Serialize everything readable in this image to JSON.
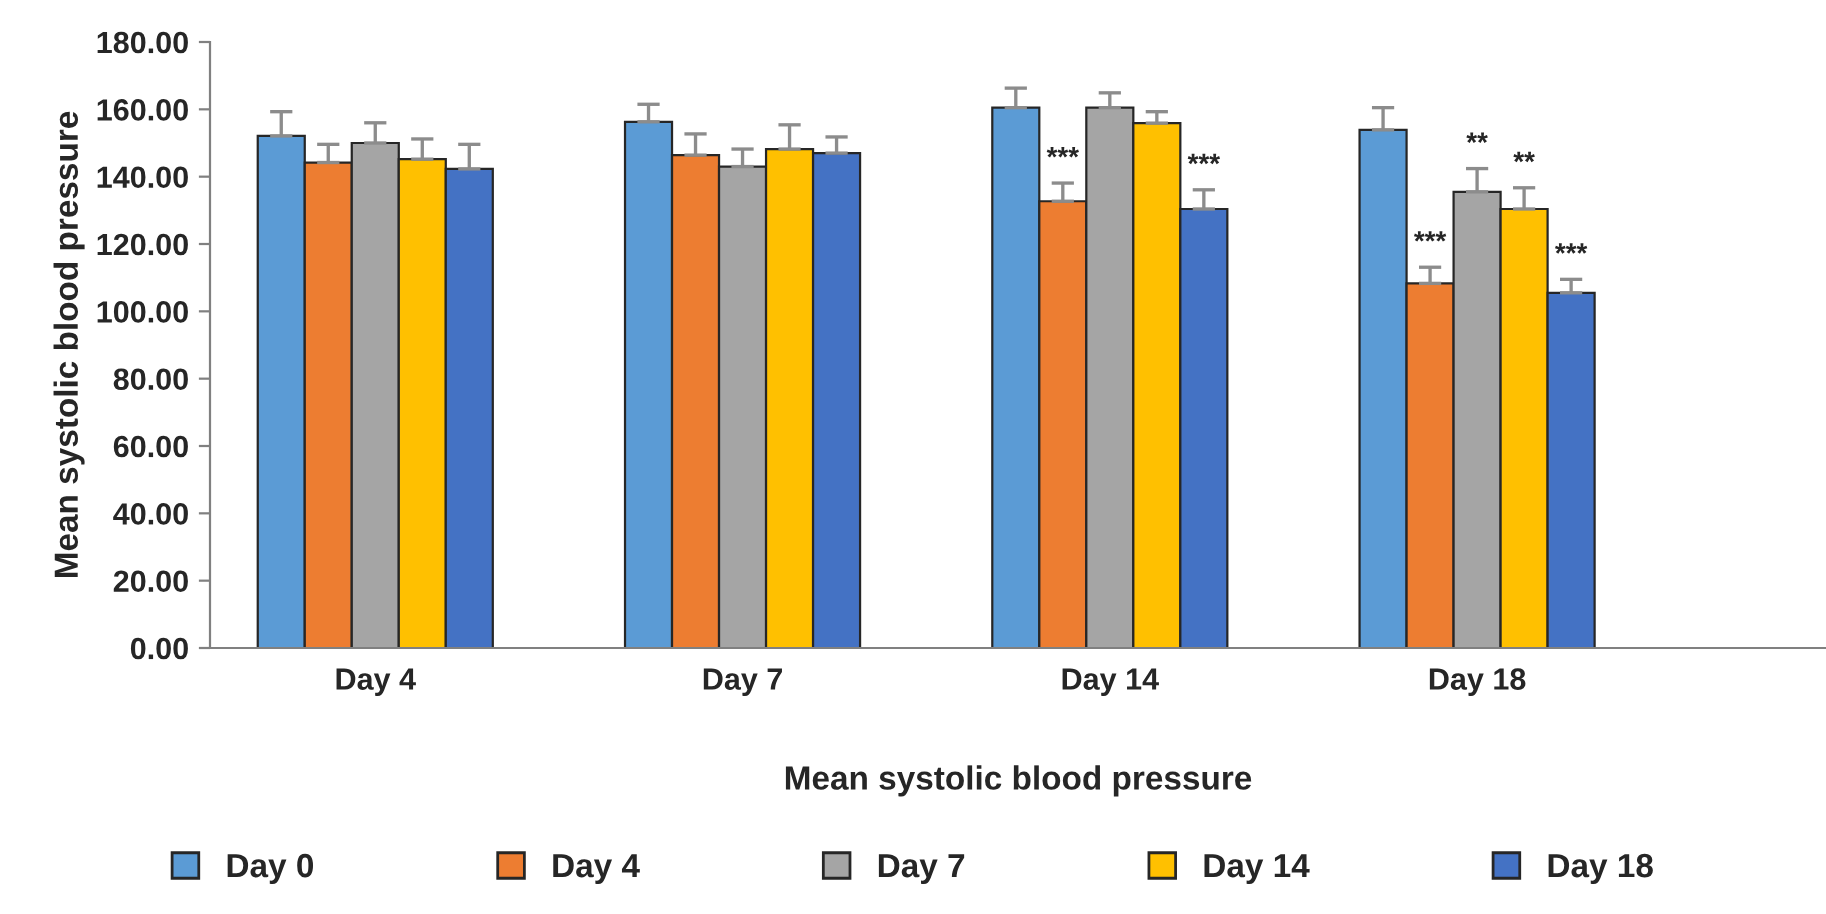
{
  "chart_data": {
    "type": "bar",
    "xlabel": "Mean systolic blood pressure",
    "ylabel": "Mean systolic blood pressure",
    "categories": [
      "Day 4",
      "Day 7",
      "Day 14",
      "Day 18"
    ],
    "series": [
      {
        "name": "Day 0",
        "color": "#5b9bd5",
        "values": [
          152.1,
          156.3,
          160.5,
          153.9
        ],
        "errors": [
          [
            152.1,
            159.3
          ],
          [
            156.3,
            161.5
          ],
          [
            160.5,
            166.3
          ],
          [
            153.9,
            160.5
          ]
        ]
      },
      {
        "name": "Day 4",
        "color": "#ed7d31",
        "values": [
          144.2,
          146.4,
          132.7,
          108.3
        ],
        "errors": [
          [
            144.2,
            149.6
          ],
          [
            146.4,
            152.7
          ],
          [
            132.7,
            138.1
          ],
          [
            108.3,
            113.1
          ]
        ],
        "value_labels": [
          null,
          null,
          "***",
          "***"
        ]
      },
      {
        "name": "Day 7",
        "color": "#a5a5a5",
        "values": [
          150.0,
          143.0,
          160.5,
          135.5
        ],
        "errors": [
          [
            150.0,
            156.0
          ],
          [
            143.0,
            148.2
          ],
          [
            160.5,
            164.9
          ],
          [
            135.5,
            142.4
          ]
        ],
        "value_labels": [
          null,
          null,
          null,
          "**"
        ]
      },
      {
        "name": "Day 14",
        "color": "#ffc000",
        "values": [
          145.2,
          148.2,
          155.9,
          130.4
        ],
        "errors": [
          [
            145.2,
            151.2
          ],
          [
            148.2,
            155.4
          ],
          [
            155.9,
            159.3
          ],
          [
            130.4,
            136.7
          ]
        ],
        "value_labels": [
          null,
          null,
          null,
          "**"
        ]
      },
      {
        "name": "Day 18",
        "color": "#4472c4",
        "values": [
          142.3,
          147.0,
          130.4,
          105.5
        ],
        "errors": [
          [
            142.3,
            149.6
          ],
          [
            147.0,
            151.8
          ],
          [
            130.4,
            136.1
          ],
          [
            105.5,
            109.5
          ]
        ],
        "value_labels": [
          null,
          null,
          "***",
          "***"
        ]
      }
    ],
    "ylim": [
      0,
      180
    ],
    "yticks": [
      {
        "value": 0,
        "label": "0.00"
      },
      {
        "value": 20,
        "label": "20.00"
      },
      {
        "value": 40,
        "label": "40.00"
      },
      {
        "value": 60,
        "label": "60.00"
      },
      {
        "value": 80,
        "label": "80.00"
      },
      {
        "value": 100,
        "label": "100.00"
      },
      {
        "value": 120,
        "label": "120.00"
      },
      {
        "value": 140,
        "label": "140.00"
      },
      {
        "value": 160,
        "label": "160.00"
      },
      {
        "value": 180,
        "label": "180.00"
      }
    ],
    "grid": false,
    "legend": "bottom"
  }
}
